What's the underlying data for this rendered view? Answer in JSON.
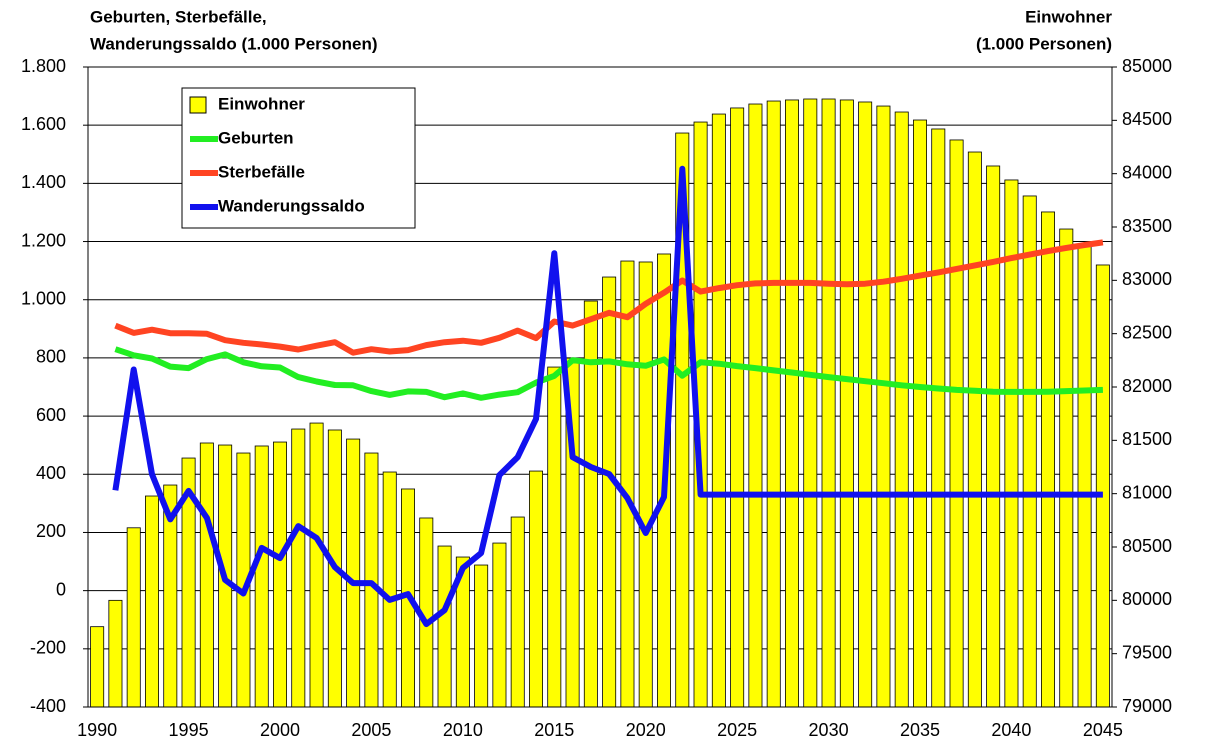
{
  "chart_data": {
    "type": "bar-line",
    "y_axis_label": [
      "Geburten, Sterbefälle,",
      "Wanderungssaldo (1.000 Personen)"
    ],
    "y2_axis_label": [
      "Einwohner",
      "(1.000 Personen)"
    ],
    "categories": [
      "1990",
      null,
      null,
      null,
      null,
      "1995",
      null,
      null,
      null,
      null,
      "2000",
      null,
      null,
      null,
      null,
      "2005",
      null,
      null,
      null,
      null,
      "2010",
      null,
      null,
      null,
      null,
      "2015",
      null,
      null,
      null,
      null,
      "2020",
      null,
      null,
      null,
      null,
      "2025",
      null,
      null,
      null,
      null,
      "2030",
      null,
      null,
      null,
      null,
      "2035",
      null,
      null,
      null,
      null,
      "2040",
      null,
      null,
      null,
      null,
      "2045"
    ],
    "series": [
      {
        "name": "Einwohner",
        "type": "bar",
        "axis": "y2",
        "color": "#ffff00",
        "values": [
          79753,
          80000,
          80680,
          80978,
          81081,
          81334,
          81475,
          81456,
          81381,
          81447,
          81484,
          81606,
          81662,
          81597,
          81512,
          81381,
          81203,
          81044,
          80772,
          80509,
          80406,
          80331,
          80537,
          80781,
          81212,
          82187,
          82271,
          82806,
          83031,
          83181,
          83172,
          83247,
          84381,
          84484,
          84559,
          84616,
          84653,
          84681,
          84691,
          84700,
          84700,
          84691,
          84672,
          84634,
          84578,
          84503,
          84419,
          84316,
          84203,
          84072,
          83941,
          83791,
          83641,
          83481,
          83322,
          83144
        ]
      },
      {
        "name": "Geburten",
        "type": "line",
        "color": "#22ee22",
        "values": [
          null,
          830,
          809,
          798,
          770,
          765,
          796,
          812,
          785,
          771,
          767,
          734,
          719,
          707,
          706,
          686,
          673,
          685,
          683,
          665,
          678,
          663,
          674,
          682,
          715,
          738,
          792,
          785,
          788,
          778,
          773,
          795,
          739,
          785,
          780,
          772,
          765,
          757,
          750,
          742,
          734,
          727,
          720,
          713,
          706,
          700,
          695,
          690,
          687,
          684,
          683,
          683,
          684,
          686,
          688,
          690
        ]
      },
      {
        "name": "Sterbefälle",
        "type": "line",
        "color": "#ff4422",
        "values": [
          null,
          911,
          886,
          897,
          885,
          885,
          883,
          861,
          852,
          846,
          839,
          829,
          842,
          854,
          818,
          830,
          822,
          827,
          844,
          854,
          859,
          852,
          869,
          894,
          868,
          925,
          911,
          933,
          955,
          940,
          986,
          1024,
          1066,
          1028,
          1040,
          1050,
          1056,
          1058,
          1058,
          1058,
          1055,
          1053,
          1055,
          1062,
          1072,
          1083,
          1094,
          1106,
          1118,
          1130,
          1143,
          1155,
          1167,
          1178,
          1188,
          1197
        ]
      },
      {
        "name": "Wanderungssaldo",
        "type": "line",
        "color": "#1111ee",
        "values": [
          null,
          345,
          760,
          400,
          245,
          343,
          250,
          37,
          -10,
          147,
          112,
          222,
          181,
          81,
          26,
          26,
          -32,
          -12,
          -115,
          -67,
          78,
          129,
          397,
          459,
          590,
          1160,
          459,
          425,
          401,
          318,
          198,
          322,
          1450,
          330,
          330,
          330,
          330,
          330,
          330,
          330,
          330,
          330,
          330,
          330,
          330,
          330,
          330,
          330,
          330,
          330,
          330,
          330,
          330,
          330,
          330,
          330
        ]
      }
    ],
    "ylim": [
      -400,
      1800
    ],
    "yticks": [
      -400,
      -200,
      0,
      200,
      400,
      600,
      800,
      {
        "value": 1000,
        "label": "1.000"
      },
      {
        "value": 1200,
        "label": "1.200"
      },
      {
        "value": 1400,
        "label": "1.400"
      },
      {
        "value": 1600,
        "label": "1.600"
      },
      {
        "value": 1800,
        "label": "1.800"
      }
    ],
    "y2lim": [
      79000,
      85000
    ],
    "y2ticks": [
      79000,
      79500,
      80000,
      80500,
      81000,
      81500,
      82000,
      82500,
      83000,
      83500,
      84000,
      84500,
      85000
    ],
    "grid": true,
    "legend": "upper left"
  }
}
